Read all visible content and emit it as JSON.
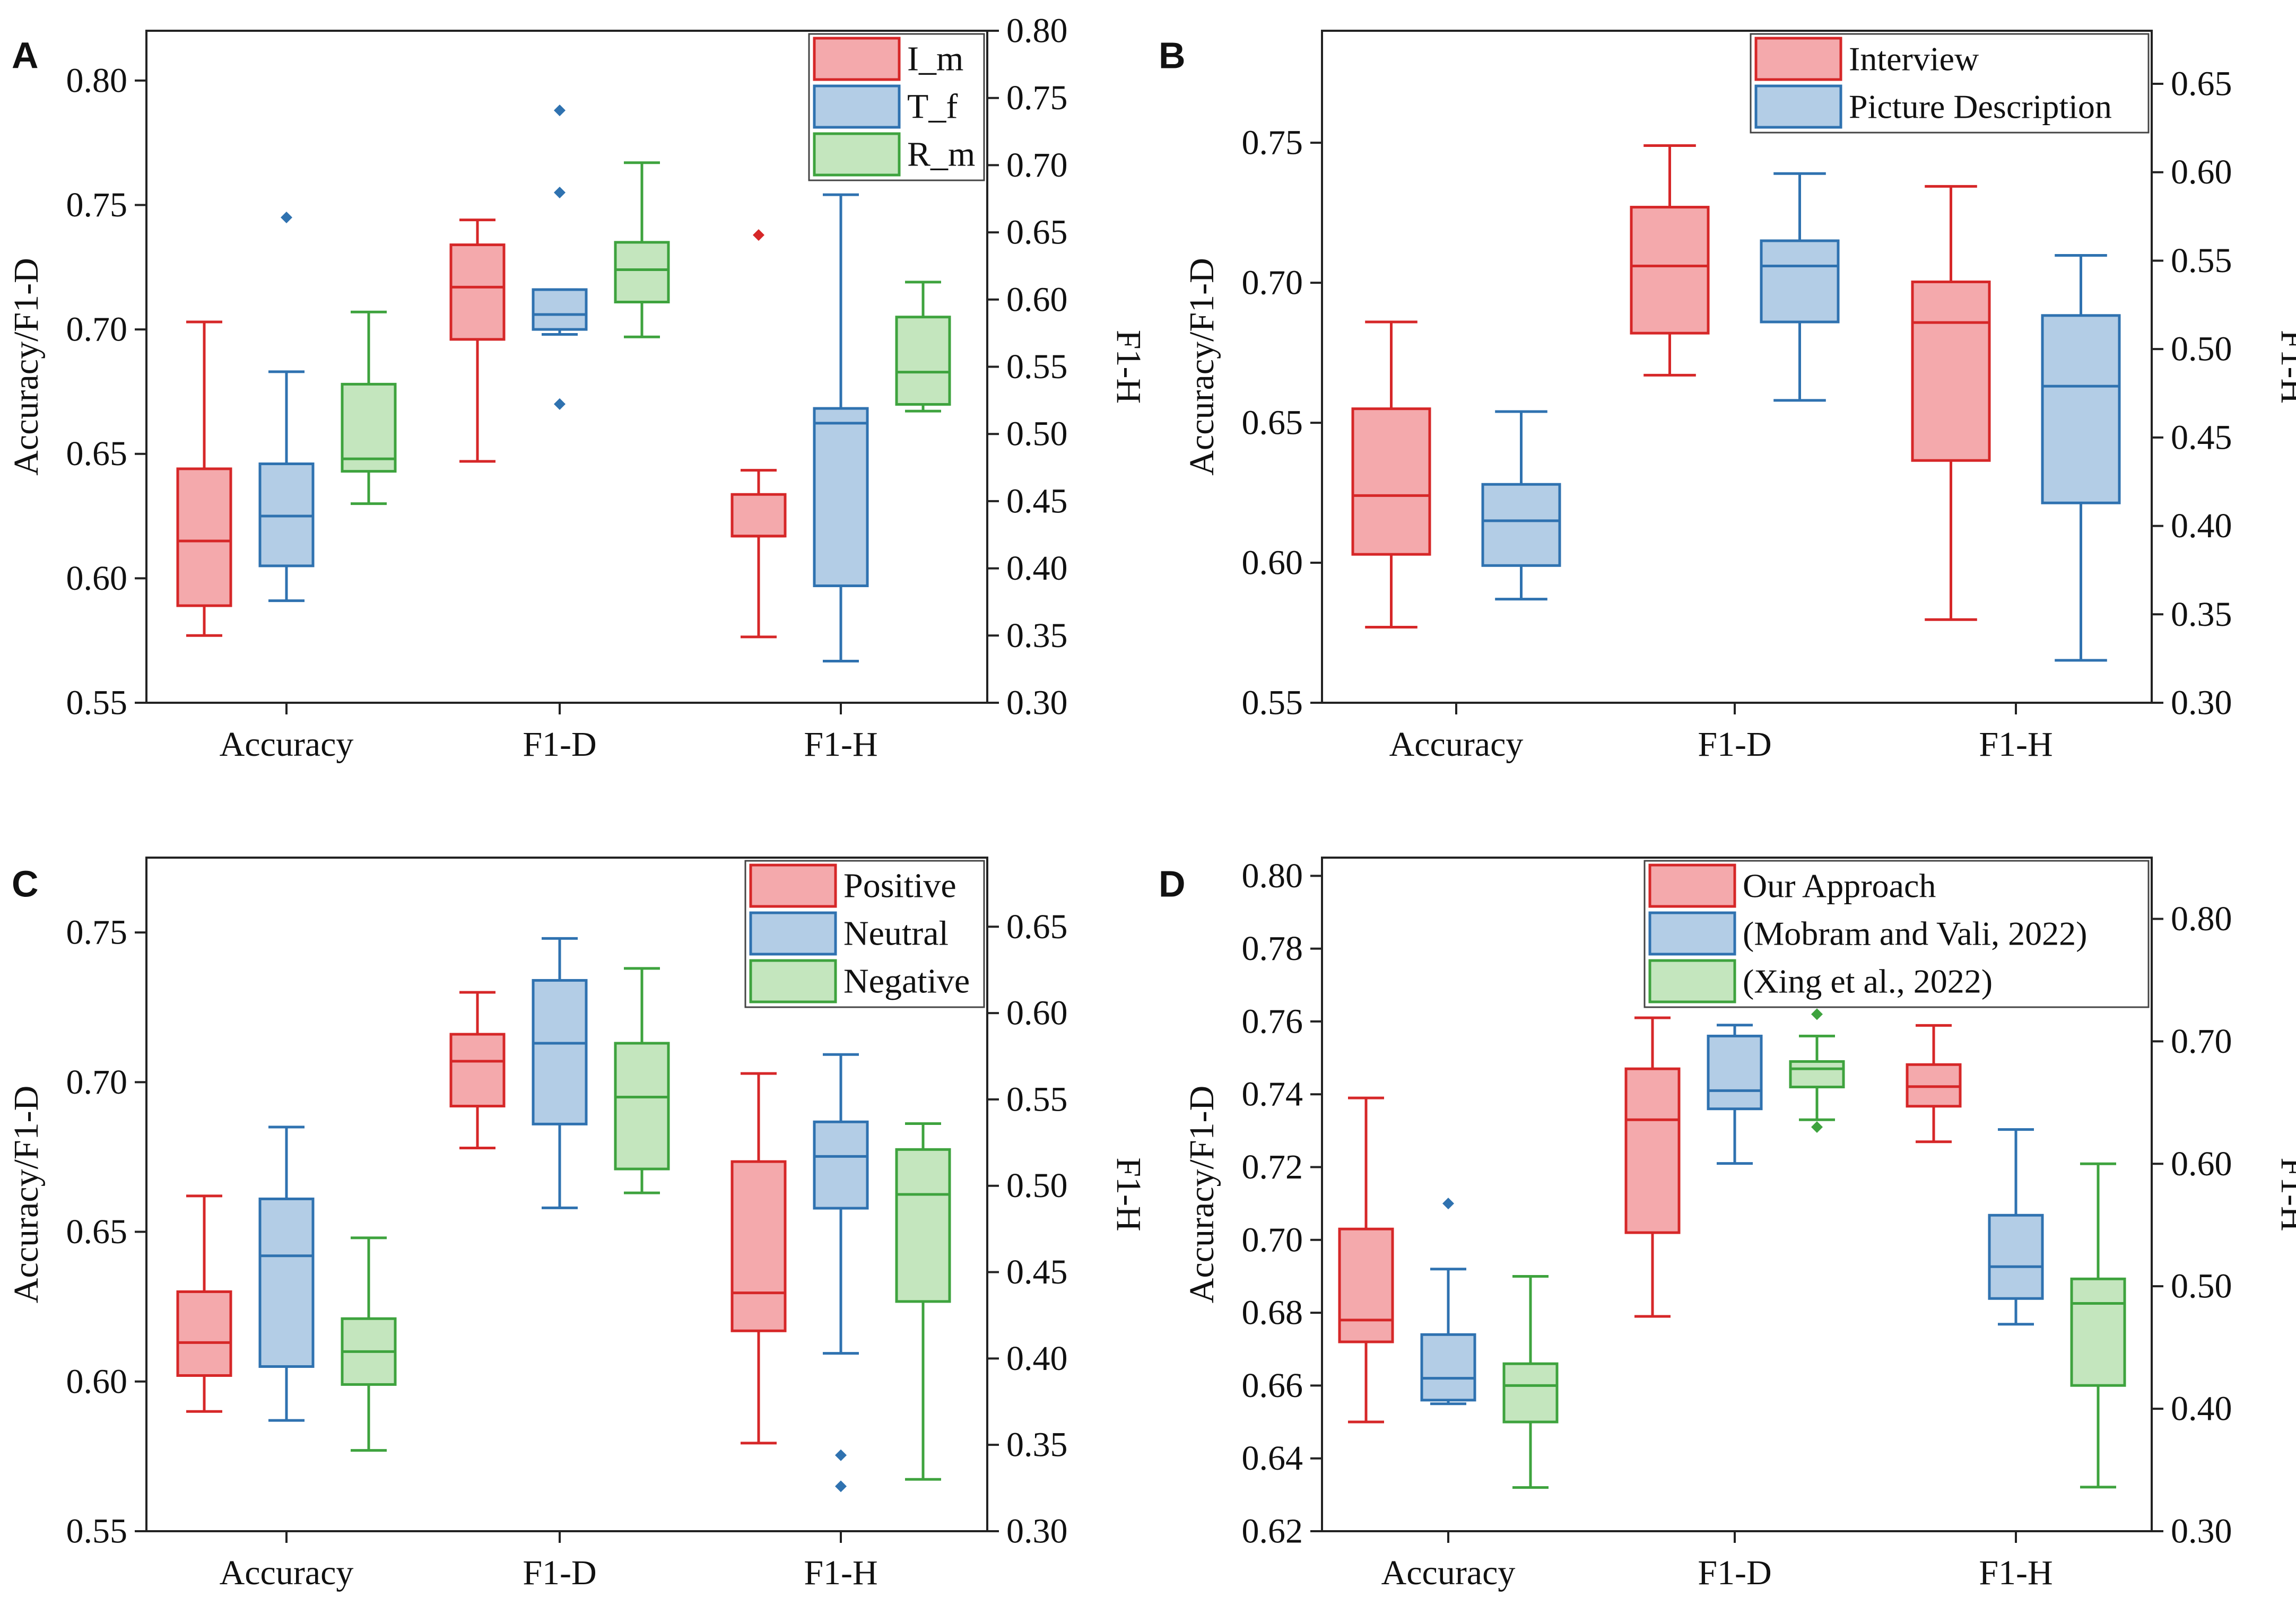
{
  "figure": {
    "panels": [
      "A",
      "B",
      "C",
      "D"
    ]
  },
  "chart_data": [
    {
      "panel": "A",
      "type": "box",
      "title": "",
      "xlabel": "",
      "ylabel": "Accuracy/F1-D",
      "y2label": "F1-H",
      "categories": [
        "Accuracy",
        "F1-D",
        "F1-H"
      ],
      "ylim": [
        0.55,
        0.82
      ],
      "yticks": [
        "0.55",
        "0.60",
        "0.65",
        "0.70",
        "0.75",
        "0.80"
      ],
      "y2lim": [
        0.3,
        0.8
      ],
      "y2ticks": [
        "0.30",
        "0.35",
        "0.40",
        "0.45",
        "0.50",
        "0.55",
        "0.60",
        "0.65",
        "0.70",
        "0.75",
        "0.80"
      ],
      "legend_position": "top-right",
      "series": [
        {
          "name": "I_m",
          "color": "#d62728",
          "fill": "#f4a9ac",
          "boxes": [
            {
              "category": "Accuracy",
              "axis": "left",
              "min": 0.577,
              "q1": 0.589,
              "median": 0.615,
              "q3": 0.644,
              "max": 0.703,
              "outliers": []
            },
            {
              "category": "F1-D",
              "axis": "left",
              "min": 0.647,
              "q1": 0.696,
              "median": 0.717,
              "q3": 0.734,
              "max": 0.744,
              "outliers": []
            },
            {
              "category": "F1-H",
              "axis": "right",
              "min": 0.349,
              "q1": 0.424,
              "median": 0.424,
              "q3": 0.455,
              "max": 0.473,
              "outliers": [
                0.648
              ]
            }
          ]
        },
        {
          "name": "T_f",
          "color": "#2f72b0",
          "fill": "#b3cde6",
          "boxes": [
            {
              "category": "Accuracy",
              "axis": "left",
              "min": 0.591,
              "q1": 0.605,
              "median": 0.625,
              "q3": 0.646,
              "max": 0.683,
              "outliers": [
                0.745
              ]
            },
            {
              "category": "F1-D",
              "axis": "left",
              "min": 0.698,
              "q1": 0.7,
              "median": 0.706,
              "q3": 0.716,
              "max": 0.716,
              "outliers": [
                0.67,
                0.755,
                0.788
              ]
            },
            {
              "category": "F1-H",
              "axis": "right",
              "min": 0.331,
              "q1": 0.387,
              "median": 0.508,
              "q3": 0.519,
              "max": 0.678,
              "outliers": []
            }
          ]
        },
        {
          "name": "R_m",
          "color": "#3ea33e",
          "fill": "#c4e6be",
          "boxes": [
            {
              "category": "Accuracy",
              "axis": "left",
              "min": 0.63,
              "q1": 0.643,
              "median": 0.648,
              "q3": 0.678,
              "max": 0.707,
              "outliers": []
            },
            {
              "category": "F1-D",
              "axis": "left",
              "min": 0.697,
              "q1": 0.711,
              "median": 0.724,
              "q3": 0.735,
              "max": 0.767,
              "outliers": []
            },
            {
              "category": "F1-H",
              "axis": "right",
              "min": 0.517,
              "q1": 0.522,
              "median": 0.546,
              "q3": 0.587,
              "max": 0.613,
              "outliers": []
            }
          ]
        }
      ]
    },
    {
      "panel": "B",
      "type": "box",
      "title": "",
      "xlabel": "",
      "ylabel": "Accuracy/F1-D",
      "y2label": "F1-H",
      "categories": [
        "Accuracy",
        "F1-D",
        "F1-H"
      ],
      "ylim": [
        0.55,
        0.79
      ],
      "yticks": [
        "0.55",
        "0.60",
        "0.65",
        "0.70",
        "0.75"
      ],
      "y2lim": [
        0.3,
        0.68
      ],
      "y2ticks": [
        "0.30",
        "0.35",
        "0.40",
        "0.45",
        "0.50",
        "0.55",
        "0.60",
        "0.65"
      ],
      "legend_position": "top-right",
      "series": [
        {
          "name": "Interview",
          "color": "#d62728",
          "fill": "#f4a9ac",
          "boxes": [
            {
              "category": "Accuracy",
              "axis": "left",
              "min": 0.577,
              "q1": 0.603,
              "median": 0.624,
              "q3": 0.655,
              "max": 0.686,
              "outliers": []
            },
            {
              "category": "F1-D",
              "axis": "left",
              "min": 0.667,
              "q1": 0.682,
              "median": 0.706,
              "q3": 0.727,
              "max": 0.749,
              "outliers": []
            },
            {
              "category": "F1-H",
              "axis": "right",
              "min": 0.347,
              "q1": 0.437,
              "median": 0.515,
              "q3": 0.538,
              "max": 0.592,
              "outliers": []
            }
          ]
        },
        {
          "name": "Picture Description",
          "color": "#2f72b0",
          "fill": "#b3cde6",
          "boxes": [
            {
              "category": "Accuracy",
              "axis": "left",
              "min": 0.587,
              "q1": 0.599,
              "median": 0.615,
              "q3": 0.628,
              "max": 0.654,
              "outliers": []
            },
            {
              "category": "F1-D",
              "axis": "left",
              "min": 0.658,
              "q1": 0.686,
              "median": 0.706,
              "q3": 0.715,
              "max": 0.739,
              "outliers": []
            },
            {
              "category": "F1-H",
              "axis": "right",
              "min": 0.324,
              "q1": 0.413,
              "median": 0.479,
              "q3": 0.519,
              "max": 0.553,
              "outliers": []
            }
          ]
        }
      ]
    },
    {
      "panel": "C",
      "type": "box",
      "title": "",
      "xlabel": "",
      "ylabel": "Accuracy/F1-D",
      "y2label": "F1-H",
      "categories": [
        "Accuracy",
        "F1-D",
        "F1-H"
      ],
      "ylim": [
        0.55,
        0.775
      ],
      "yticks": [
        "0.55",
        "0.60",
        "0.65",
        "0.70",
        "0.75"
      ],
      "y2lim": [
        0.3,
        0.69
      ],
      "y2ticks": [
        "0.30",
        "0.35",
        "0.40",
        "0.45",
        "0.50",
        "0.55",
        "0.60",
        "0.65"
      ],
      "legend_position": "top-right",
      "series": [
        {
          "name": "Positive",
          "color": "#d62728",
          "fill": "#f4a9ac",
          "boxes": [
            {
              "category": "Accuracy",
              "axis": "left",
              "min": 0.59,
              "q1": 0.602,
              "median": 0.613,
              "q3": 0.63,
              "max": 0.662,
              "outliers": []
            },
            {
              "category": "F1-D",
              "axis": "left",
              "min": 0.678,
              "q1": 0.692,
              "median": 0.707,
              "q3": 0.716,
              "max": 0.73,
              "outliers": []
            },
            {
              "category": "F1-H",
              "axis": "right",
              "min": 0.351,
              "q1": 0.416,
              "median": 0.438,
              "q3": 0.514,
              "max": 0.565,
              "outliers": []
            }
          ]
        },
        {
          "name": "Neutral",
          "color": "#2f72b0",
          "fill": "#b3cde6",
          "boxes": [
            {
              "category": "Accuracy",
              "axis": "left",
              "min": 0.587,
              "q1": 0.605,
              "median": 0.642,
              "q3": 0.661,
              "max": 0.685,
              "outliers": []
            },
            {
              "category": "F1-D",
              "axis": "left",
              "min": 0.658,
              "q1": 0.686,
              "median": 0.713,
              "q3": 0.734,
              "max": 0.748,
              "outliers": []
            },
            {
              "category": "F1-H",
              "axis": "right",
              "min": 0.403,
              "q1": 0.487,
              "median": 0.517,
              "q3": 0.537,
              "max": 0.576,
              "outliers": [
                0.326,
                0.344
              ]
            }
          ]
        },
        {
          "name": "Negative",
          "color": "#3ea33e",
          "fill": "#c4e6be",
          "boxes": [
            {
              "category": "Accuracy",
              "axis": "left",
              "min": 0.577,
              "q1": 0.599,
              "median": 0.61,
              "q3": 0.621,
              "max": 0.648,
              "outliers": []
            },
            {
              "category": "F1-D",
              "axis": "left",
              "min": 0.663,
              "q1": 0.671,
              "median": 0.695,
              "q3": 0.713,
              "max": 0.738,
              "outliers": []
            },
            {
              "category": "F1-H",
              "axis": "right",
              "min": 0.33,
              "q1": 0.433,
              "median": 0.495,
              "q3": 0.521,
              "max": 0.536,
              "outliers": []
            }
          ]
        }
      ]
    },
    {
      "panel": "D",
      "type": "box",
      "title": "",
      "xlabel": "",
      "ylabel": "Accuracy/F1-D",
      "y2label": "F1-H",
      "categories": [
        "Accuracy",
        "F1-D",
        "F1-H"
      ],
      "ylim": [
        0.62,
        0.805
      ],
      "yticks": [
        "0.62",
        "0.64",
        "0.66",
        "0.68",
        "0.70",
        "0.72",
        "0.74",
        "0.76",
        "0.78",
        "0.80"
      ],
      "y2lim": [
        0.3,
        0.85
      ],
      "y2ticks": [
        "0.30",
        "0.40",
        "0.50",
        "0.60",
        "0.70",
        "0.80"
      ],
      "legend_position": "top-right",
      "series": [
        {
          "name": "Our Approach",
          "color": "#d62728",
          "fill": "#f4a9ac",
          "boxes": [
            {
              "category": "Accuracy",
              "axis": "left",
              "min": 0.65,
              "q1": 0.672,
              "median": 0.678,
              "q3": 0.703,
              "max": 0.739,
              "outliers": []
            },
            {
              "category": "F1-D",
              "axis": "left",
              "min": 0.679,
              "q1": 0.702,
              "median": 0.733,
              "q3": 0.747,
              "max": 0.761,
              "outliers": []
            },
            {
              "category": "F1-H",
              "axis": "right",
              "min": 0.618,
              "q1": 0.647,
              "median": 0.663,
              "q3": 0.681,
              "max": 0.713,
              "outliers": []
            }
          ]
        },
        {
          "name": "(Mobram and Vali, 2022)",
          "color": "#2f72b0",
          "fill": "#b3cde6",
          "boxes": [
            {
              "category": "Accuracy",
              "axis": "left",
              "min": 0.655,
              "q1": 0.656,
              "median": 0.662,
              "q3": 0.674,
              "max": 0.692,
              "outliers": [
                0.71
              ]
            },
            {
              "category": "F1-D",
              "axis": "left",
              "min": 0.721,
              "q1": 0.736,
              "median": 0.741,
              "q3": 0.756,
              "max": 0.759,
              "outliers": []
            },
            {
              "category": "F1-H",
              "axis": "right",
              "min": 0.469,
              "q1": 0.49,
              "median": 0.516,
              "q3": 0.558,
              "max": 0.628,
              "outliers": []
            }
          ]
        },
        {
          "name": "(Xing et al., 2022)",
          "color": "#3ea33e",
          "fill": "#c4e6be",
          "boxes": [
            {
              "category": "Accuracy",
              "axis": "left",
              "min": 0.632,
              "q1": 0.65,
              "median": 0.66,
              "q3": 0.666,
              "max": 0.69,
              "outliers": []
            },
            {
              "category": "F1-D",
              "axis": "left",
              "min": 0.733,
              "q1": 0.742,
              "median": 0.747,
              "q3": 0.749,
              "max": 0.756,
              "outliers": [
                0.731,
                0.762
              ]
            },
            {
              "category": "F1-H",
              "axis": "right",
              "min": 0.336,
              "q1": 0.419,
              "median": 0.486,
              "q3": 0.506,
              "max": 0.6,
              "outliers": []
            }
          ]
        }
      ]
    }
  ]
}
